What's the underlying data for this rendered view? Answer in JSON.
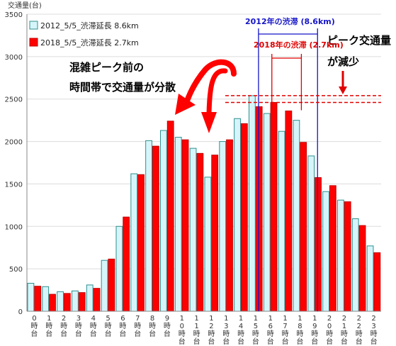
{
  "chart_data": {
    "type": "bar",
    "ylabel": "交通量(台)",
    "ylim": [
      0,
      3500
    ],
    "yticks": [
      "0",
      "500",
      "1000",
      "1500",
      "2000",
      "2500",
      "3000",
      "3500"
    ],
    "grid": true,
    "legend_position": "top-left",
    "categories": [
      "0時台",
      "1時台",
      "2時台",
      "3時台",
      "4時台",
      "5時台",
      "6時台",
      "7時台",
      "8時台",
      "9時台",
      "10時台",
      "11時台",
      "12時台",
      "13時台",
      "14時台",
      "15時台",
      "16時台",
      "17時台",
      "18時台",
      "19時台",
      "20時台",
      "21時台",
      "22時台",
      "23時台"
    ],
    "series": [
      {
        "name": "2012_5/5_渋滞延長 8.6km",
        "color": "#d6f5fa",
        "border": "#2f8f8f",
        "values": [
          330,
          290,
          230,
          240,
          310,
          600,
          1000,
          1620,
          2010,
          2130,
          2050,
          1920,
          1580,
          2000,
          2270,
          2540,
          2330,
          2120,
          2250,
          1830,
          1410,
          1310,
          1090,
          770
        ]
      },
      {
        "name": "2018_5/5_渋滞延長 2.7km",
        "color": "#ff0000",
        "border": "#c00000",
        "values": [
          295,
          200,
          210,
          220,
          270,
          615,
          1110,
          1610,
          1945,
          2240,
          2020,
          1860,
          1840,
          2020,
          2210,
          2410,
          2460,
          2360,
          1990,
          1575,
          1480,
          1290,
          1010,
          690
        ]
      }
    ],
    "annotations": {
      "peak_shift": [
        "混雑ピーク前の",
        "時間帯で交通量が分散"
      ],
      "peak_decrease": [
        "ピーク交通量",
        "が減少"
      ],
      "jam_2012": "2012年の渋滞 (8.6km)",
      "jam_2018": "2018年の渋滞 (2.7km)",
      "jam_2012_range": [
        15,
        19
      ],
      "jam_2018_range": [
        16,
        18
      ],
      "dashed_levels": [
        2540,
        2460
      ]
    }
  }
}
